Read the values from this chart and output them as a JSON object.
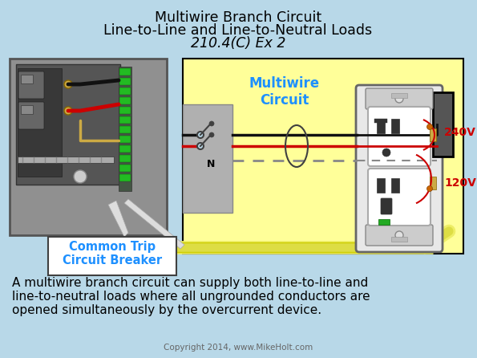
{
  "title_line1": "Multiwire Branch Circuit",
  "title_line2": "Line-to-Line and Line-to-Neutral Loads",
  "title_line3": "210.4(C) Ex 2",
  "bg_color": "#b8d8e8",
  "yellow_bg": "#ffff99",
  "label_multiwire": "Multiwire\nCircuit",
  "label_common_trip": "Common Trip\nCircuit Breaker",
  "label_240v": "240V",
  "label_120v": "120V",
  "label_N": "N",
  "body_text_line1": "A multiwire branch circuit can supply both line-to-line and",
  "body_text_line2": "line-to-neutral loads where all ungrounded conductors are",
  "body_text_line3": "opened simultaneously by the overcurrent device.",
  "copyright_text": "Copyright 2014, www.MikeHolt.com",
  "cyan_color": "#1e90ff",
  "red_color": "#cc0000",
  "black_color": "#000000",
  "white_color": "#ffffff",
  "dark_gray": "#404040",
  "panel_outer": "#888888",
  "panel_inner": "#606060",
  "panel_dark": "#404040",
  "wire_black": "#111111",
  "wire_red": "#cc0000",
  "wire_gray": "#aaaaaa",
  "green_terminal": "#22aa22",
  "gold_color": "#ccaa44",
  "cable_yellow": "#eeee66"
}
